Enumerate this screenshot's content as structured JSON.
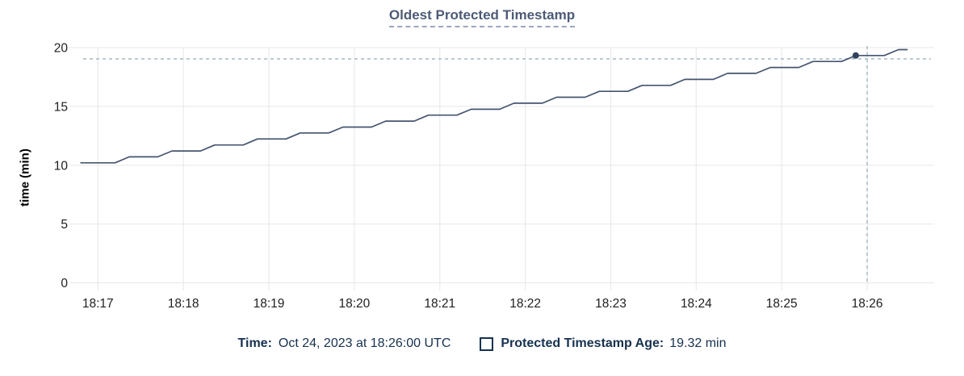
{
  "title": "Oldest Protected Timestamp",
  "y_axis": {
    "label": "time (min)",
    "ticks": [
      0,
      5,
      10,
      15,
      20
    ]
  },
  "x_axis": {
    "ticks": [
      "18:17",
      "18:18",
      "18:19",
      "18:20",
      "18:21",
      "18:22",
      "18:23",
      "18:24",
      "18:25",
      "18:26"
    ]
  },
  "legend": {
    "time_label": "Time:",
    "time_value": "Oct 24, 2023 at 18:26:00 UTC",
    "series_label": "Protected Timestamp Age:",
    "series_value": "19.32 min"
  },
  "colors": {
    "line": "#46546f",
    "dot": "#32415c",
    "crosshair": "#a9bfca",
    "grid": "#ececec",
    "title_text": "#4c5b77",
    "legend_text": "#16314f",
    "tick_text": "#1e1e1e"
  },
  "chart_data": {
    "type": "line",
    "title": "Oldest Protected Timestamp",
    "xlabel": "",
    "ylabel": "time (min)",
    "ylim": [
      0,
      20
    ],
    "x_domain": [
      "18:16:40",
      "18:26:47"
    ],
    "grid": true,
    "legend_position": "bottom",
    "series": [
      {
        "name": "Protected Timestamp Age",
        "unit": "min",
        "points": [
          [
            "18:16:48",
            10.2
          ],
          [
            "18:17:12",
            10.2
          ],
          [
            "18:17:22",
            10.71
          ],
          [
            "18:17:42",
            10.71
          ],
          [
            "18:17:52",
            11.21
          ],
          [
            "18:18:12",
            11.21
          ],
          [
            "18:18:22",
            11.72
          ],
          [
            "18:18:42",
            11.72
          ],
          [
            "18:18:52",
            12.23
          ],
          [
            "18:19:12",
            12.23
          ],
          [
            "18:19:22",
            12.74
          ],
          [
            "18:19:42",
            12.74
          ],
          [
            "18:19:52",
            13.24
          ],
          [
            "18:20:12",
            13.24
          ],
          [
            "18:20:22",
            13.75
          ],
          [
            "18:20:42",
            13.75
          ],
          [
            "18:20:52",
            14.26
          ],
          [
            "18:21:12",
            14.26
          ],
          [
            "18:21:22",
            14.76
          ],
          [
            "18:21:42",
            14.76
          ],
          [
            "18:21:52",
            15.27
          ],
          [
            "18:22:12",
            15.27
          ],
          [
            "18:22:22",
            15.78
          ],
          [
            "18:22:42",
            15.78
          ],
          [
            "18:22:52",
            16.28
          ],
          [
            "18:23:12",
            16.28
          ],
          [
            "18:23:22",
            16.79
          ],
          [
            "18:23:42",
            16.79
          ],
          [
            "18:23:52",
            17.3
          ],
          [
            "18:24:12",
            17.3
          ],
          [
            "18:24:22",
            17.81
          ],
          [
            "18:24:42",
            17.81
          ],
          [
            "18:24:52",
            18.31
          ],
          [
            "18:25:12",
            18.31
          ],
          [
            "18:25:22",
            18.82
          ],
          [
            "18:25:42",
            18.82
          ],
          [
            "18:25:52",
            19.33
          ],
          [
            "18:26:12",
            19.33
          ],
          [
            "18:26:22",
            19.83
          ],
          [
            "18:26:28",
            19.83
          ]
        ]
      }
    ],
    "hover": {
      "time": "18:26:00",
      "value": 19.32,
      "time_display": "Oct 24, 2023 at 18:26:00 UTC",
      "value_display": "19.32 min"
    }
  }
}
